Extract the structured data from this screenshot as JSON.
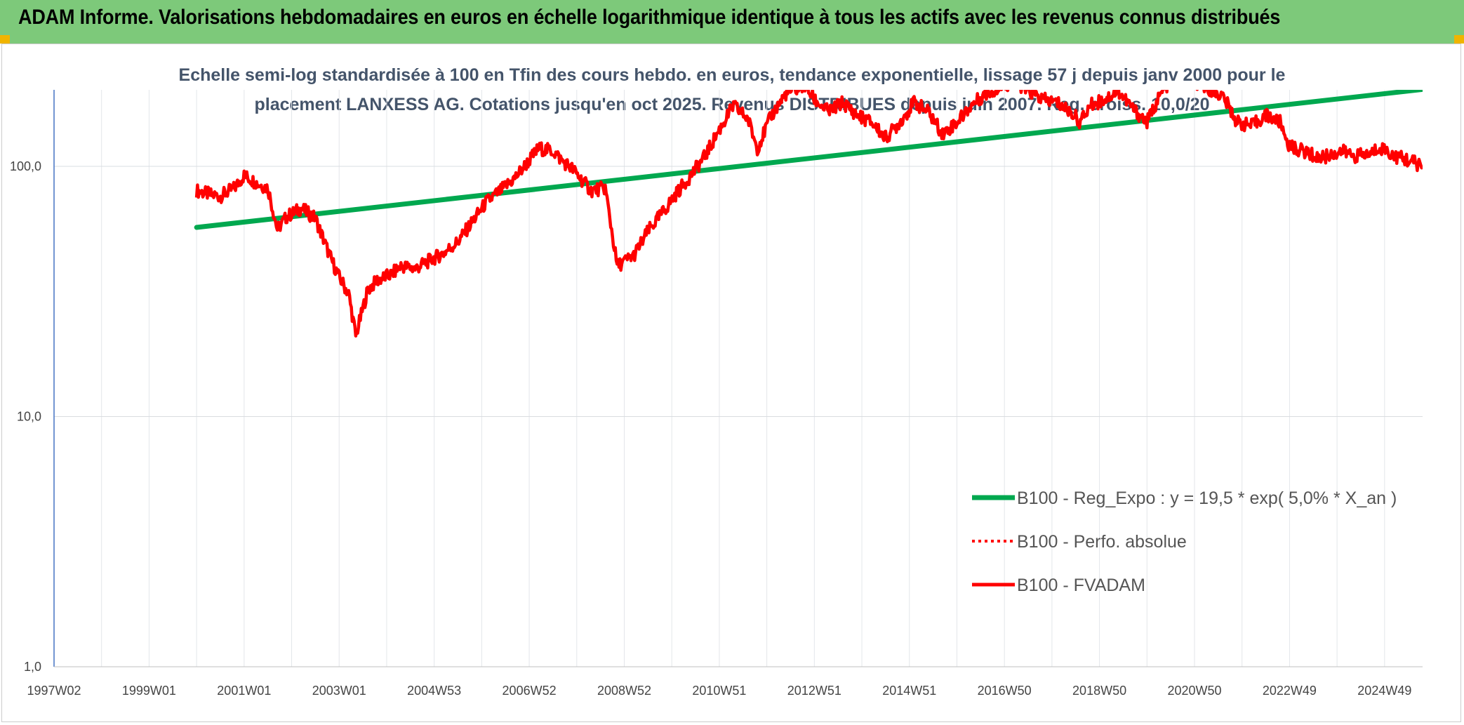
{
  "header": {
    "title": "ADAM Informe. Valorisations hebdomadaires en euros en échelle logarithmique identique à tous les actifs avec les revenus connus distribués"
  },
  "colors": {
    "header_bg": "#7dc97a",
    "trend": "#00a84f",
    "fvadam": "#ff0000",
    "perfo": "#ff0000",
    "corner_accent": "#f0b400"
  },
  "chart_data": {
    "type": "line",
    "title_lines": [
      "Echelle semi-log standardisée à 100 en Tfin des cours hebdo. en euros, tendance exponentielle, lissage 57 j depuis janv 2000 pour le",
      "placement LANXESS AG. Cotations jusqu'en oct 2025. Revenus DISTRIBUES depuis juin 2007. Reg. croiss. 10,0/20"
    ],
    "y_scale": "log",
    "ylim": [
      1,
      200
    ],
    "xlim": [
      1997.0,
      2025.8
    ],
    "y_ticks": [
      "100,0",
      "10,0",
      "1,0"
    ],
    "y_tick_values": [
      100,
      10,
      1
    ],
    "x_ticks": [
      "1997W02",
      "1999W01",
      "2001W01",
      "2003W01",
      "2004W53",
      "2006W52",
      "2008W52",
      "2010W51",
      "2012W51",
      "2014W51",
      "2016W50",
      "2018W50",
      "2020W50",
      "2022W49",
      "2024W49"
    ],
    "x_tick_years": [
      1997.0,
      1999.0,
      2001.0,
      2003.0,
      2005.0,
      2007.0,
      2009.0,
      2011.0,
      2013.0,
      2015.0,
      2017.0,
      2019.0,
      2021.0,
      2023.0,
      2025.0
    ],
    "grid": true,
    "legend_position": "right",
    "series": [
      {
        "name": "B100 - Reg_Expo : y = 19,5 * exp( 5,0% *  X_an )",
        "style": "solid-thick",
        "x": [
          2000.0,
          2025.8
        ],
        "y": [
          57,
          203
        ]
      },
      {
        "name": "B100 - Perfo. absolue",
        "style": "dotted",
        "x": [],
        "y": []
      },
      {
        "name": "B100 - FVADAM",
        "style": "solid",
        "x": [
          2000.0,
          2000.3,
          2000.5,
          2000.8,
          2001.0,
          2001.3,
          2001.5,
          2001.7,
          2001.9,
          2002.2,
          2002.5,
          2002.8,
          2003.0,
          2003.2,
          2003.35,
          2003.6,
          2003.8,
          2004.1,
          2004.3,
          2004.6,
          2004.9,
          2005.2,
          2005.5,
          2005.8,
          2006.1,
          2006.4,
          2006.7,
          2006.9,
          2007.2,
          2007.5,
          2007.7,
          2007.9,
          2008.3,
          2008.6,
          2008.85,
          2009.2,
          2009.5,
          2009.8,
          2010.1,
          2010.4,
          2010.7,
          2011.0,
          2011.3,
          2011.6,
          2011.8,
          2012.1,
          2012.4,
          2012.8,
          2013.0,
          2013.3,
          2013.6,
          2013.9,
          2014.2,
          2014.5,
          2014.8,
          2015.1,
          2015.4,
          2015.7,
          2016.0,
          2016.3,
          2016.6,
          2016.9,
          2017.2,
          2017.5,
          2017.8,
          2018.1,
          2018.4,
          2018.6,
          2018.8,
          2019.1,
          2019.4,
          2019.7,
          2020.0,
          2020.2,
          2020.4,
          2020.7,
          2021.0,
          2021.3,
          2021.6,
          2021.9,
          2022.2,
          2022.5,
          2022.8,
          2023.0,
          2023.3,
          2023.6,
          2023.8,
          2024.1,
          2024.4,
          2024.7,
          2024.9,
          2025.2,
          2025.5,
          2025.8
        ],
        "y": [
          80,
          77,
          76,
          82,
          92,
          85,
          82,
          56,
          63,
          68,
          62,
          44,
          36,
          31,
          21,
          32,
          35,
          37,
          40,
          39,
          42,
          45,
          50,
          60,
          72,
          80,
          90,
          100,
          118,
          115,
          105,
          98,
          80,
          82,
          40,
          44,
          55,
          65,
          78,
          92,
          110,
          140,
          175,
          155,
          118,
          160,
          195,
          210,
          185,
          165,
          180,
          160,
          150,
          130,
          150,
          180,
          165,
          135,
          150,
          175,
          195,
          205,
          220,
          200,
          185,
          180,
          165,
          150,
          175,
          185,
          200,
          170,
          150,
          180,
          210,
          220,
          215,
          205,
          190,
          150,
          145,
          160,
          150,
          120,
          115,
          108,
          110,
          115,
          110,
          112,
          120,
          110,
          106,
          100
        ]
      }
    ]
  }
}
